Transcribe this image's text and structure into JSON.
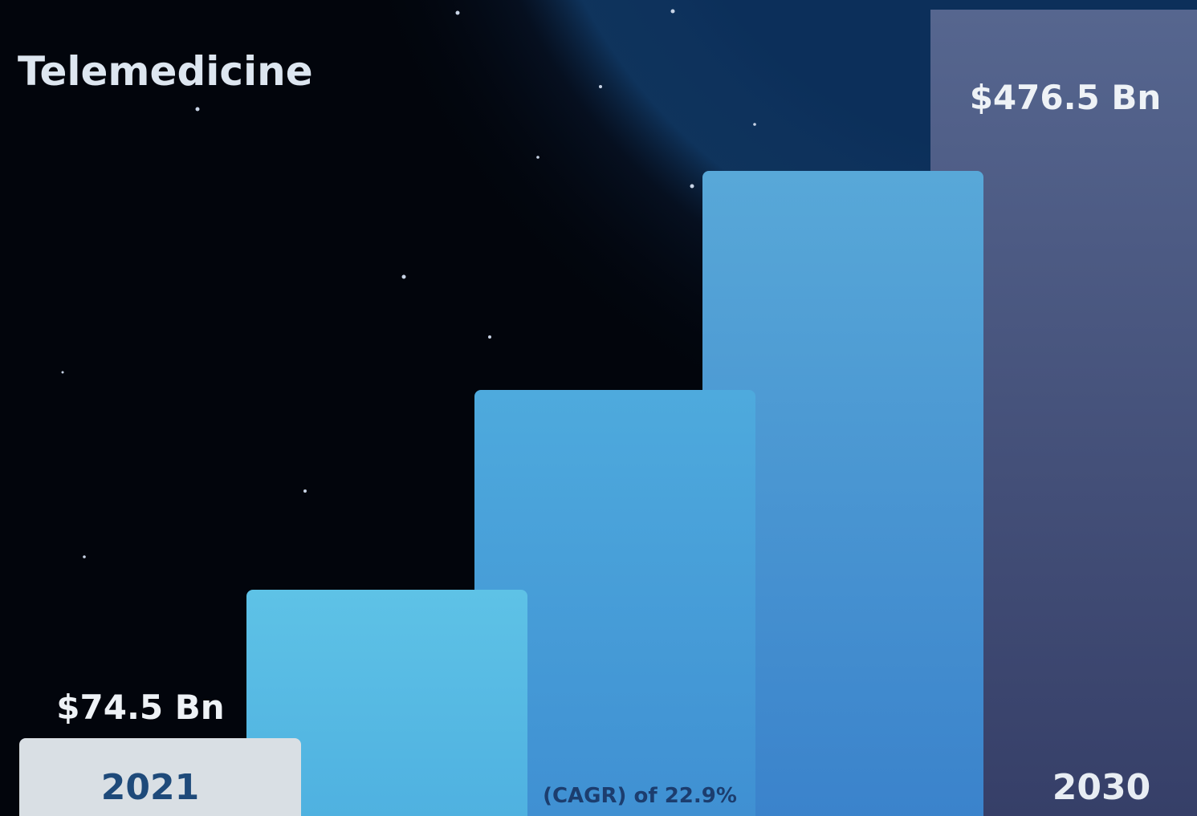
{
  "title": "Telemedicine",
  "start": {
    "value_label": "$74.5 Bn",
    "year": "2021"
  },
  "end": {
    "value_label": "$476.5 Bn",
    "year": "2030"
  },
  "growth_note": "(CAGR) of 22.9%"
}
